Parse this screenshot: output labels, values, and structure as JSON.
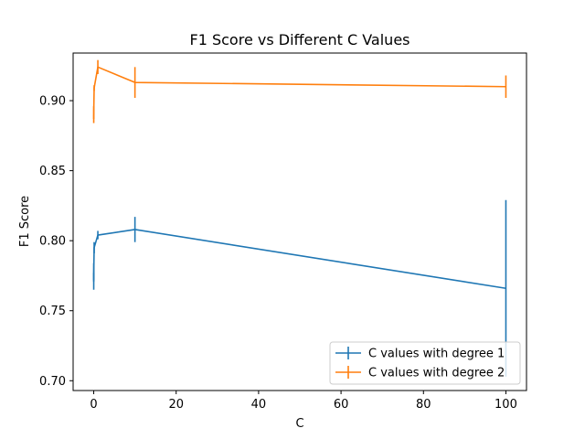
{
  "chart_data": {
    "type": "line",
    "title": "F1 Score vs Different C Values",
    "xlabel": "C",
    "ylabel": "F1 Score",
    "xlim": [
      -5,
      105
    ],
    "ylim": [
      0.693,
      0.934
    ],
    "x_ticks": [
      0,
      20,
      40,
      60,
      80,
      100
    ],
    "y_ticks": [
      0.7,
      0.75,
      0.8,
      0.85,
      0.9
    ],
    "x_tick_labels": [
      "0",
      "20",
      "40",
      "60",
      "80",
      "100"
    ],
    "y_tick_labels": [
      "0.70",
      "0.75",
      "0.80",
      "0.85",
      "0.90"
    ],
    "grid": false,
    "legend_position": "lower right",
    "series": [
      {
        "name": "C values with degree 1",
        "color": "#1f77b4",
        "x": [
          0.001,
          0.01,
          0.1,
          1,
          10,
          100
        ],
        "y": [
          0.771,
          0.778,
          0.795,
          0.804,
          0.808,
          0.766
        ],
        "yerr": [
          0.006,
          0.006,
          0.004,
          0.003,
          0.009,
          0.063
        ]
      },
      {
        "name": "C values with degree 2",
        "color": "#ff7f0e",
        "x": [
          0.001,
          0.01,
          0.1,
          1,
          10,
          100
        ],
        "y": [
          0.887,
          0.893,
          0.909,
          0.924,
          0.913,
          0.91
        ],
        "yerr": [
          0.003,
          0.003,
          0.002,
          0.005,
          0.011,
          0.008
        ]
      }
    ]
  }
}
